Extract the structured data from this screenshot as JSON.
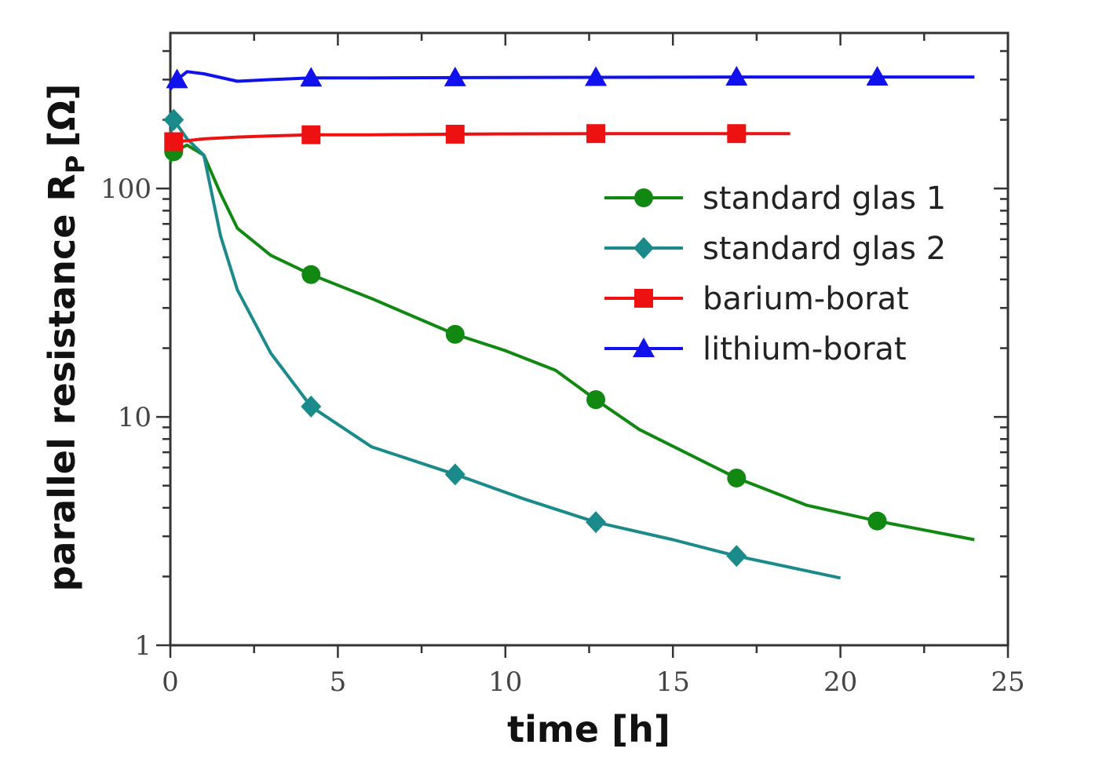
{
  "chart_data": {
    "type": "line",
    "title": "",
    "xlabel": "time [h]",
    "ylabel": "parallel resistance R",
    "ylabel_subscript": "P",
    "ylabel_unit": "[Ω]",
    "xlim": [
      0,
      25
    ],
    "ylim": [
      1,
      480
    ],
    "yscale": "log",
    "grid": false,
    "legend_position": "top-right",
    "x_ticks": [
      "0",
      "5",
      "10",
      "15",
      "20",
      "25"
    ],
    "y_ticks": [
      "1",
      "10",
      "100"
    ],
    "series": [
      {
        "name": "standard glas 1",
        "color": "#118811",
        "marker": "circle",
        "x": [
          0,
          0.1,
          0.5,
          1,
          1.5,
          2,
          3,
          4.2,
          6,
          8.5,
          10,
          11.5,
          12.7,
          14,
          16.9,
          19,
          21.1,
          24
        ],
        "y": [
          130,
          145,
          155,
          140,
          95,
          67,
          51,
          42,
          33,
          23,
          19.5,
          16,
          11.9,
          8.8,
          5.4,
          4.1,
          3.5,
          2.9
        ],
        "marker_x": [
          0.1,
          4.2,
          8.5,
          12.7,
          16.9,
          21.1
        ]
      },
      {
        "name": "standard glas 2",
        "color": "#1a8a8a",
        "marker": "diamond",
        "x": [
          0,
          0.1,
          0.5,
          1,
          1.5,
          2,
          3,
          4.2,
          6,
          8.5,
          10.5,
          12.7,
          15,
          16.9,
          20
        ],
        "y": [
          170,
          200,
          165,
          140,
          62,
          36,
          19,
          11.1,
          7.4,
          5.6,
          4.4,
          3.46,
          2.9,
          2.46,
          1.97
        ],
        "marker_x": [
          0.1,
          4.2,
          8.5,
          12.7,
          16.9
        ]
      },
      {
        "name": "barium-borat",
        "color": "#ee1111",
        "marker": "square",
        "x": [
          0,
          0.5,
          1,
          2,
          3,
          4.2,
          6,
          8.5,
          12.7,
          16.9,
          18.5
        ],
        "y": [
          160,
          162,
          165,
          168,
          170,
          172,
          172,
          173,
          174,
          174,
          174
        ],
        "marker_x": [
          0.1,
          4.2,
          8.5,
          12.7,
          16.9
        ]
      },
      {
        "name": "lithium-borat",
        "color": "#1111ee",
        "marker": "triangle",
        "x": [
          0,
          0.2,
          0.5,
          1,
          2,
          3,
          4.2,
          6,
          8.5,
          12.7,
          16.9,
          21.1,
          24
        ],
        "y": [
          272,
          300,
          325,
          318,
          295,
          300,
          305,
          305,
          306,
          307,
          308,
          308,
          308
        ],
        "marker_x": [
          0.2,
          4.2,
          8.5,
          12.7,
          16.9,
          21.1
        ]
      }
    ]
  }
}
